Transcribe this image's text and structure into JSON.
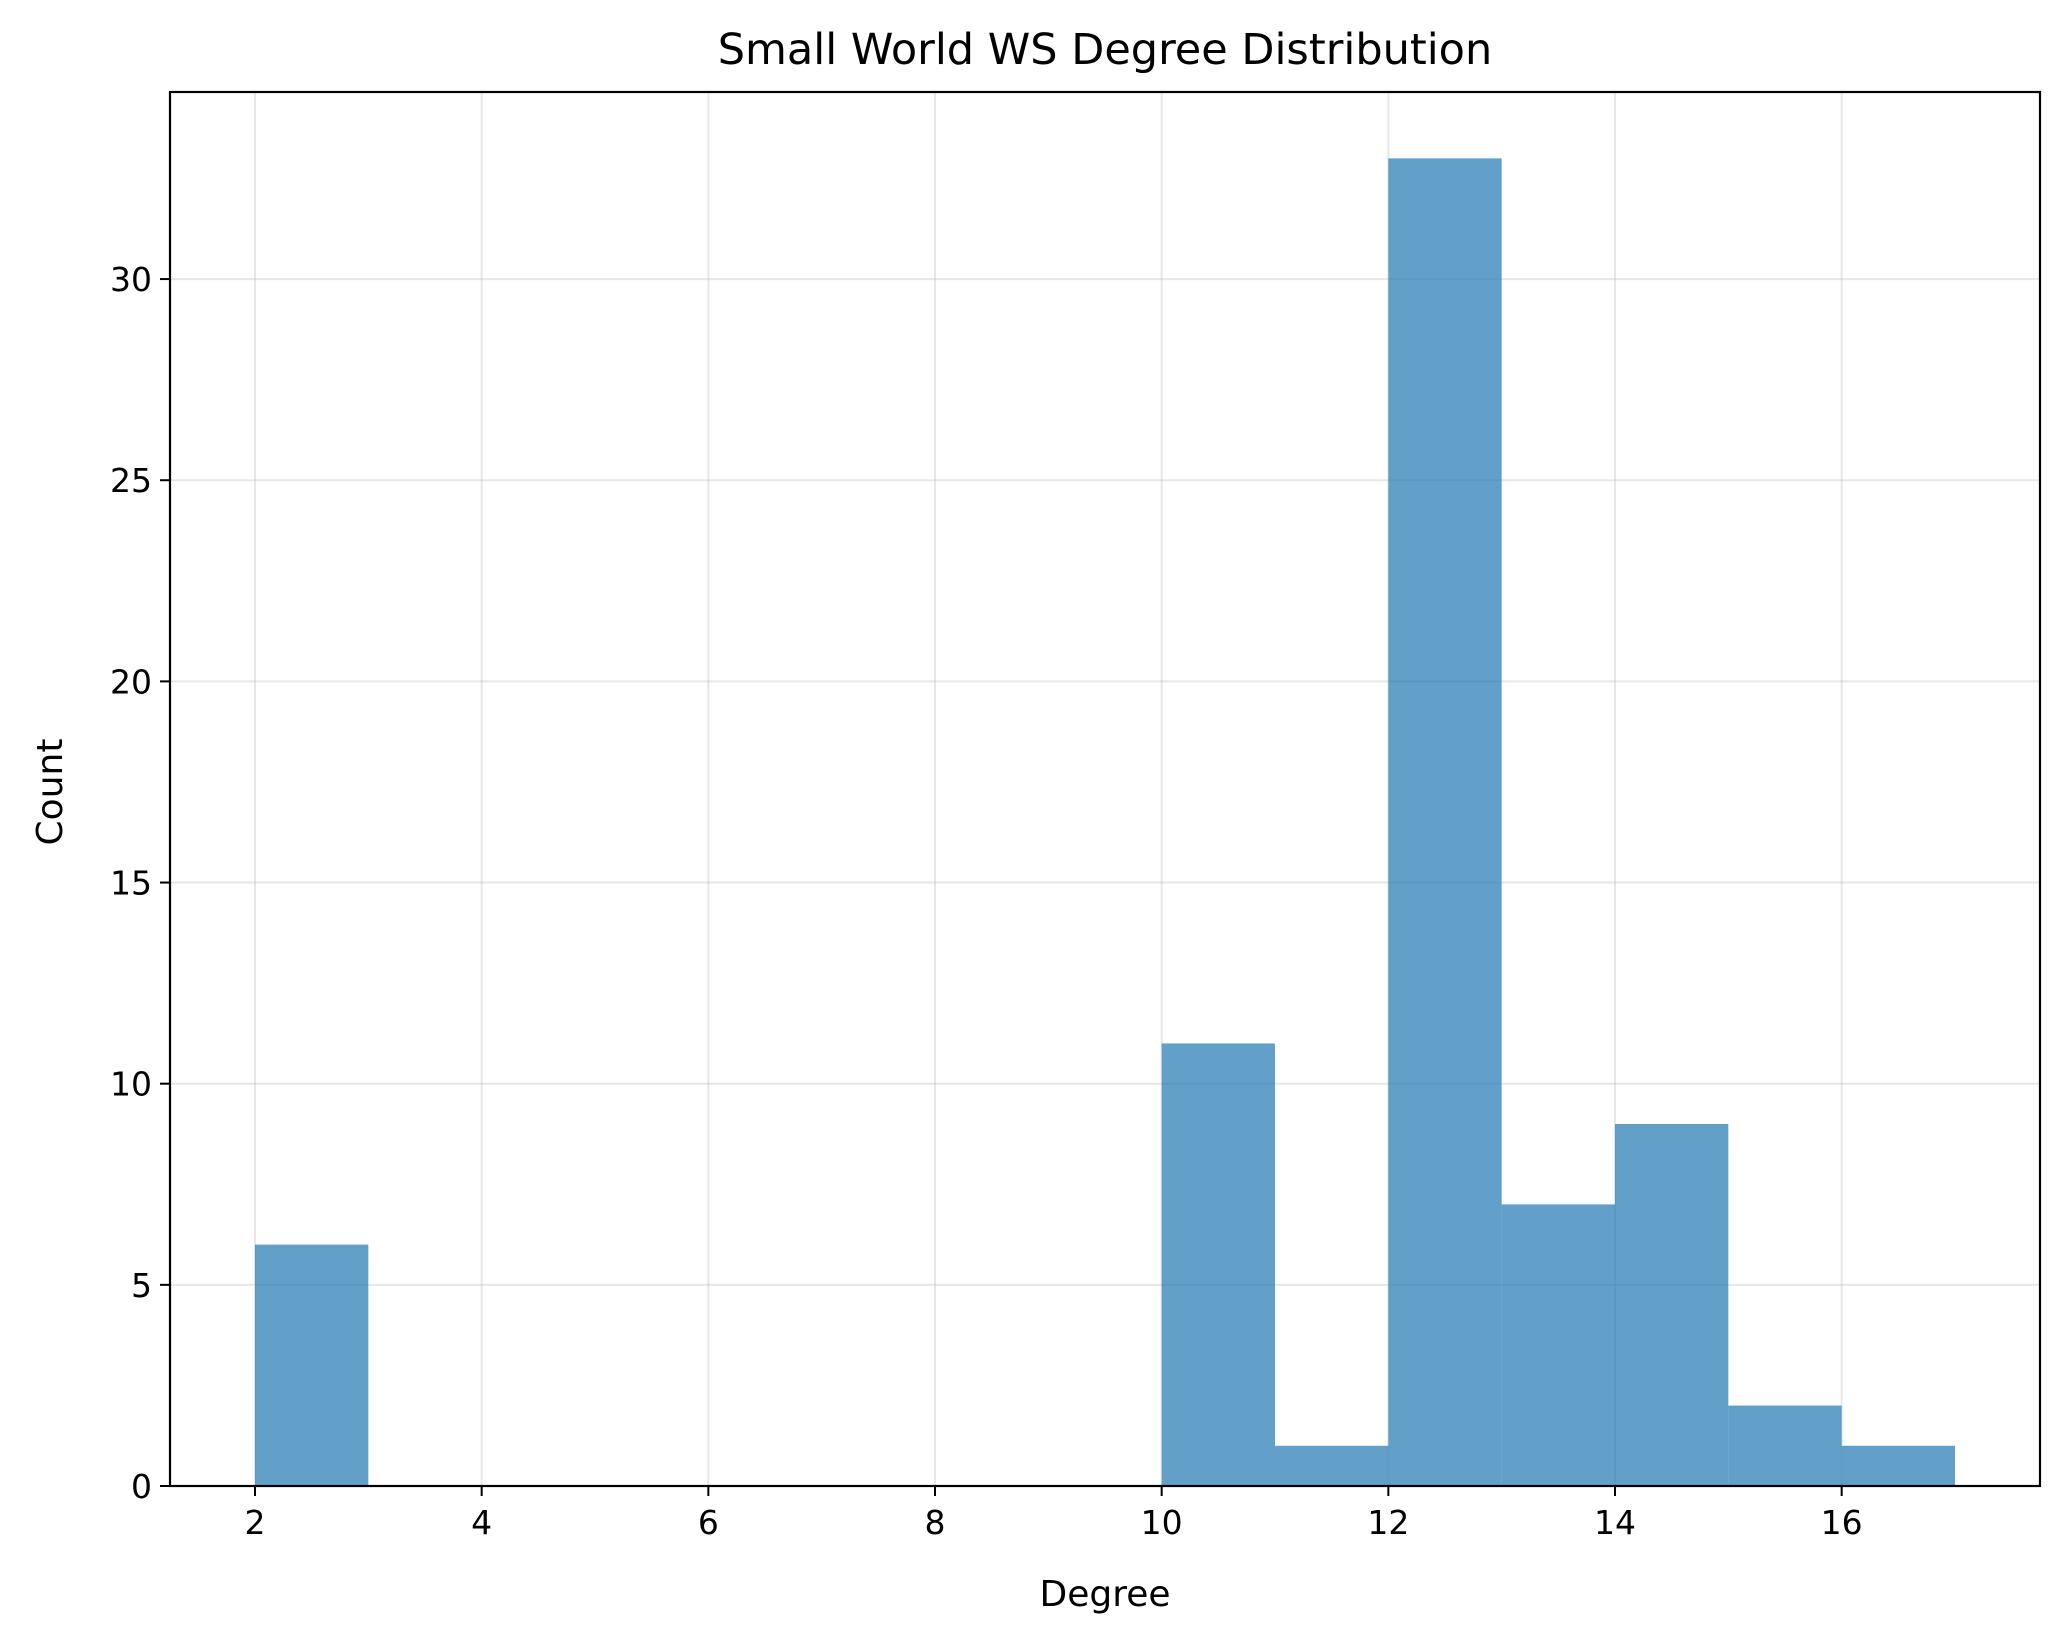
{
  "chart_data": {
    "type": "bar",
    "subtype": "histogram",
    "title": "Small World WS Degree Distribution",
    "xlabel": "Degree",
    "ylabel": "Count",
    "xlim": [
      1.25,
      17.75
    ],
    "ylim": [
      0,
      34.65
    ],
    "xticks": [
      2,
      4,
      6,
      8,
      10,
      12,
      14,
      16
    ],
    "yticks": [
      0,
      5,
      10,
      15,
      20,
      25,
      30
    ],
    "grid": true,
    "bar_color": "#1f77b4",
    "bar_opacity": 0.7,
    "bins": [
      {
        "x0": 2,
        "x1": 3,
        "count": 6
      },
      {
        "x0": 3,
        "x1": 4,
        "count": 0
      },
      {
        "x0": 4,
        "x1": 5,
        "count": 0
      },
      {
        "x0": 5,
        "x1": 6,
        "count": 0
      },
      {
        "x0": 6,
        "x1": 7,
        "count": 0
      },
      {
        "x0": 7,
        "x1": 8,
        "count": 0
      },
      {
        "x0": 8,
        "x1": 9,
        "count": 0
      },
      {
        "x0": 9,
        "x1": 10,
        "count": 0
      },
      {
        "x0": 10,
        "x1": 11,
        "count": 11
      },
      {
        "x0": 11,
        "x1": 12,
        "count": 1
      },
      {
        "x0": 12,
        "x1": 13,
        "count": 33
      },
      {
        "x0": 13,
        "x1": 14,
        "count": 7
      },
      {
        "x0": 14,
        "x1": 15,
        "count": 9
      },
      {
        "x0": 15,
        "x1": 16,
        "count": 2
      },
      {
        "x0": 16,
        "x1": 17,
        "count": 1
      }
    ]
  }
}
